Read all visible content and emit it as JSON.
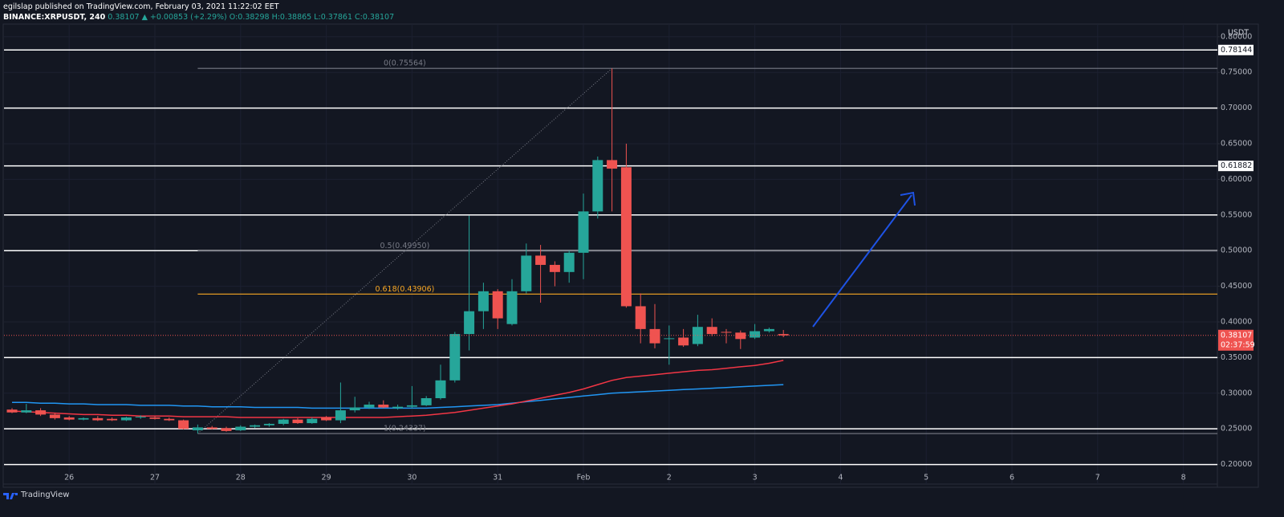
{
  "header": {
    "publisher_line": "egilslap published on TradingView.com, February 03, 2021 11:22:02 EET",
    "symbol": "BINANCE:XRPUSDT, 240",
    "price": "0.38107",
    "change": "▲ +0.00853 (+2.29%)",
    "ohlc": "O:0.38298 H:0.38865 L:0.37861 C:0.38107"
  },
  "footer": "TradingView",
  "chart_data": {
    "type": "candlestick",
    "axis_unit": "USDT",
    "categories": [
      null,
      null,
      null,
      null,
      "26",
      null,
      null,
      null,
      null,
      null,
      "27",
      null,
      null,
      null,
      null,
      null,
      "28",
      null,
      null,
      null,
      null,
      null,
      "29",
      null,
      null,
      null,
      null,
      null,
      "30",
      null,
      null,
      null,
      null,
      null,
      "31",
      null,
      null,
      null,
      null,
      null,
      "Feb",
      null,
      null,
      null,
      null,
      null,
      "2",
      null,
      null,
      null,
      null,
      null,
      "3",
      null,
      null,
      null,
      null,
      null,
      "4",
      null,
      null,
      null,
      null,
      null,
      "5",
      null,
      null,
      null,
      null,
      null,
      "6",
      null,
      null,
      null,
      null,
      null,
      "7",
      null,
      null,
      null,
      null,
      null,
      "8",
      null
    ],
    "open": [
      0.277,
      0.273,
      0.276,
      0.27,
      0.266,
      0.263,
      0.265,
      0.264,
      0.262,
      0.266,
      0.266,
      0.264,
      0.262,
      0.248,
      0.252,
      0.251,
      0.248,
      0.253,
      0.255,
      0.257,
      0.263,
      0.258,
      0.266,
      0.262,
      0.276,
      0.28,
      0.284,
      0.279,
      0.281,
      0.283,
      0.293,
      0.318,
      0.383,
      0.415,
      0.443,
      0.397,
      0.443,
      0.493,
      0.48,
      0.47,
      0.497,
      0.555,
      0.627,
      0.617,
      0.422,
      0.39,
      0.376,
      0.378,
      0.369,
      0.393,
      0.386,
      0.385,
      0.378,
      0.387,
      0.38298,
      null,
      null,
      null,
      null,
      null,
      null,
      null,
      null,
      null,
      null,
      null,
      null,
      null,
      null,
      null,
      null,
      null,
      null,
      null,
      null,
      null,
      null,
      null,
      null,
      null,
      null,
      null,
      null,
      null
    ],
    "high": [
      0.279,
      0.285,
      0.279,
      0.272,
      0.268,
      0.266,
      0.268,
      0.266,
      0.267,
      0.269,
      0.268,
      0.266,
      0.263,
      0.256,
      0.254,
      0.253,
      0.255,
      0.256,
      0.258,
      0.264,
      0.265,
      0.266,
      0.268,
      0.315,
      0.295,
      0.288,
      0.29,
      0.284,
      0.31,
      0.296,
      0.34,
      0.386,
      0.549,
      0.455,
      0.446,
      0.46,
      0.51,
      0.508,
      0.485,
      0.5,
      0.58,
      0.632,
      0.75564,
      0.65,
      0.44,
      0.425,
      0.395,
      0.39,
      0.41,
      0.405,
      0.39,
      0.388,
      0.397,
      0.392,
      0.38865,
      null,
      null,
      null,
      null,
      null,
      null,
      null,
      null,
      null,
      null,
      null,
      null,
      null,
      null,
      null,
      null,
      null,
      null,
      null,
      null,
      null,
      null,
      null,
      null,
      null,
      null,
      null,
      null,
      null
    ],
    "low": [
      0.272,
      0.272,
      0.268,
      0.263,
      0.262,
      0.262,
      0.261,
      0.261,
      0.261,
      0.264,
      0.263,
      0.261,
      0.249,
      0.24337,
      0.249,
      0.246,
      0.247,
      0.251,
      0.253,
      0.255,
      0.257,
      0.257,
      0.261,
      0.258,
      0.273,
      0.278,
      0.279,
      0.277,
      0.279,
      0.282,
      0.291,
      0.315,
      0.36,
      0.39,
      0.39,
      0.395,
      0.44,
      0.427,
      0.45,
      0.455,
      0.46,
      0.545,
      0.555,
      0.42,
      0.37,
      0.363,
      0.34,
      0.365,
      0.366,
      0.38,
      0.37,
      0.362,
      0.376,
      0.385,
      0.37861,
      null,
      null,
      null,
      null,
      null,
      null,
      null,
      null,
      null,
      null,
      null,
      null,
      null,
      null,
      null,
      null,
      null,
      null,
      null,
      null,
      null,
      null,
      null,
      null,
      null,
      null,
      null,
      null,
      null
    ],
    "close": [
      0.273,
      0.276,
      0.27,
      0.265,
      0.263,
      0.265,
      0.262,
      0.262,
      0.266,
      0.267,
      0.264,
      0.262,
      0.25,
      0.252,
      0.25,
      0.247,
      0.253,
      0.255,
      0.257,
      0.263,
      0.258,
      0.264,
      0.262,
      0.276,
      0.28,
      0.284,
      0.28,
      0.281,
      0.283,
      0.293,
      0.318,
      0.383,
      0.415,
      0.443,
      0.405,
      0.443,
      0.493,
      0.48,
      0.47,
      0.497,
      0.555,
      0.627,
      0.615,
      0.422,
      0.39,
      0.37,
      0.377,
      0.367,
      0.393,
      0.383,
      0.385,
      0.376,
      0.387,
      0.39,
      0.38107,
      null,
      null,
      null,
      null,
      null,
      null,
      null,
      null,
      null,
      null,
      null,
      null,
      null,
      null,
      null,
      null,
      null,
      null,
      null,
      null,
      null,
      null,
      null,
      null,
      null,
      null,
      null,
      null,
      null
    ],
    "up_color": "#26a69a",
    "down_color": "#ef5350",
    "lines": [
      {
        "color": "#2196f3",
        "values": [
          0.287,
          0.287,
          0.286,
          0.286,
          0.285,
          0.285,
          0.284,
          0.284,
          0.284,
          0.283,
          0.283,
          0.283,
          0.282,
          0.282,
          0.281,
          0.281,
          0.281,
          0.28,
          0.28,
          0.28,
          0.28,
          0.279,
          0.279,
          0.279,
          0.279,
          0.279,
          0.279,
          0.279,
          0.279,
          0.279,
          0.28,
          0.281,
          0.282,
          0.283,
          0.284,
          0.286,
          0.288,
          0.29,
          0.292,
          0.294,
          0.296,
          0.298,
          0.3,
          0.301,
          0.302,
          0.303,
          0.304,
          0.305,
          0.306,
          0.307,
          0.308,
          0.309,
          0.31,
          0.311,
          0.312,
          null,
          null,
          null,
          null,
          null,
          null,
          null,
          null,
          null,
          null,
          null,
          null,
          null,
          null,
          null,
          null,
          null,
          null,
          null,
          null,
          null,
          null,
          null,
          null,
          null,
          null,
          null,
          null,
          null
        ]
      },
      {
        "color": "#f23645",
        "values": [
          0.275,
          0.274,
          0.273,
          0.272,
          0.271,
          0.27,
          0.27,
          0.269,
          0.269,
          0.268,
          0.268,
          0.268,
          0.267,
          0.267,
          0.267,
          0.267,
          0.266,
          0.266,
          0.266,
          0.266,
          0.266,
          0.266,
          0.266,
          0.266,
          0.266,
          0.266,
          0.266,
          0.267,
          0.268,
          0.269,
          0.271,
          0.273,
          0.276,
          0.279,
          0.282,
          0.285,
          0.289,
          0.293,
          0.297,
          0.301,
          0.306,
          0.312,
          0.318,
          0.322,
          0.324,
          0.326,
          0.328,
          0.33,
          0.332,
          0.333,
          0.335,
          0.337,
          0.339,
          0.342,
          0.346,
          null,
          null,
          null,
          null,
          null,
          null,
          null,
          null,
          null,
          null,
          null,
          null,
          null,
          null,
          null,
          null,
          null,
          null,
          null,
          null,
          null,
          null,
          null,
          null,
          null,
          null,
          null,
          null,
          null
        ]
      }
    ],
    "hlines": [
      0.78144,
      0.7,
      0.61882,
      0.55,
      0.5,
      0.35,
      0.25,
      0.2
    ],
    "hline_color": "#ffffff",
    "price_markers": [
      {
        "value": 0.78144,
        "label": "0.78144"
      },
      {
        "value": 0.61882,
        "label": "0.61882"
      }
    ],
    "fib": [
      {
        "value": 0.75564,
        "label": "0(0.75564)",
        "color": "#787b86"
      },
      {
        "value": 0.4995,
        "label": "0.5(0.49950)",
        "color": "#787b86"
      },
      {
        "value": 0.43906,
        "label": "0.618(0.43906)",
        "color": "#f9a825"
      },
      {
        "value": 0.24337,
        "label": "1(0.24337)",
        "color": "#787b86"
      }
    ],
    "last_price": {
      "value": 0.38107,
      "label": "0.38107",
      "countdown": "02:37:59",
      "color": "#ef5350"
    },
    "ylim": [
      0.1725,
      0.8178
    ],
    "yticks": [
      {
        "value": 0.2,
        "label": "0.20000"
      },
      {
        "value": 0.25,
        "label": "0.25000"
      },
      {
        "value": 0.3,
        "label": "0.30000"
      },
      {
        "value": 0.35,
        "label": "0.35000"
      },
      {
        "value": 0.4,
        "label": "0.40000"
      },
      {
        "value": 0.45,
        "label": "0.45000"
      },
      {
        "value": 0.5,
        "label": "0.50000"
      },
      {
        "value": 0.55,
        "label": "0.55000"
      },
      {
        "value": 0.6,
        "label": "0.60000"
      },
      {
        "value": 0.65,
        "label": "0.65000"
      },
      {
        "value": 0.7,
        "label": "0.70000"
      },
      {
        "value": 0.75,
        "label": "0.75000"
      },
      {
        "value": 0.8,
        "label": "0.80000"
      }
    ],
    "grid": true
  }
}
